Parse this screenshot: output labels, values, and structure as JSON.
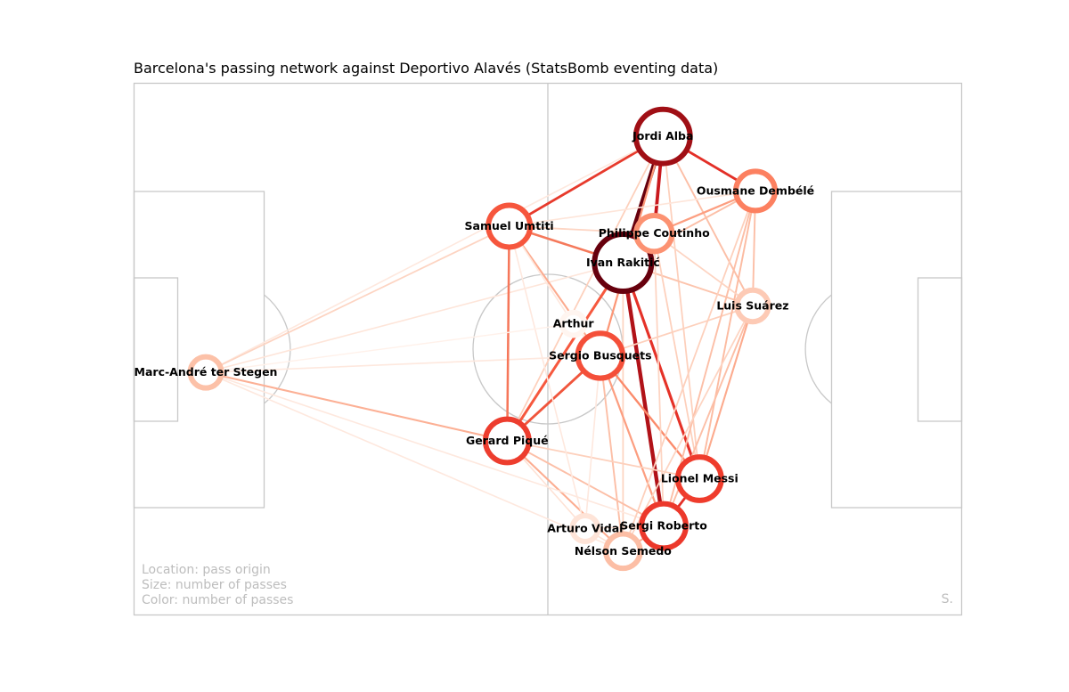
{
  "title": "Barcelona's passing network against Deportivo Alavés (StatsBomb eventing data)",
  "legend": {
    "location": "Location: pass origin",
    "size": "Size: number of passes",
    "color": "Color: number of passes"
  },
  "credit": "S.",
  "chart_data": {
    "type": "network",
    "pitch": {
      "length": 120,
      "width": 80,
      "line_color": "#c8c8c8"
    },
    "colormap": "Reds",
    "nodes": [
      {
        "id": "stegen",
        "name": "Marc-André ter Stegen",
        "x": 10.4,
        "y": 43.5,
        "passes": 14,
        "color": "#fcc1a8"
      },
      {
        "id": "umtiti",
        "name": "Samuel Umtiti",
        "x": 54.4,
        "y": 21.5,
        "passes": 46,
        "color": "#f6563d"
      },
      {
        "id": "arthur",
        "name": "Arthur",
        "x": 63.7,
        "y": 36.2,
        "passes": 2,
        "color": "#fff5f0"
      },
      {
        "id": "busquets",
        "name": "Sergio Busquets",
        "x": 67.6,
        "y": 41.0,
        "passes": 58,
        "color": "#f44f39"
      },
      {
        "id": "pique",
        "name": "Gerard Piqué",
        "x": 54.1,
        "y": 53.8,
        "passes": 52,
        "color": "#ed3d2e"
      },
      {
        "id": "alba",
        "name": "Jordi Alba",
        "x": 76.7,
        "y": 8.0,
        "passes": 105,
        "color": "#a00f15"
      },
      {
        "id": "rakitic",
        "name": "Ivan Rakitić",
        "x": 70.9,
        "y": 27.0,
        "passes": 122,
        "color": "#67000d"
      },
      {
        "id": "coutinho",
        "name": "Philippe Coutinho",
        "x": 75.4,
        "y": 22.6,
        "passes": 26,
        "color": "#fc9272"
      },
      {
        "id": "dembele",
        "name": "Ousmane Dembélé",
        "x": 90.1,
        "y": 16.2,
        "passes": 36,
        "color": "#fc8060"
      },
      {
        "id": "suarez",
        "name": "Luis Suárez",
        "x": 89.7,
        "y": 33.5,
        "passes": 15,
        "color": "#fdcab5"
      },
      {
        "id": "messi",
        "name": "Lionel Messi",
        "x": 82.0,
        "y": 59.5,
        "passes": 52,
        "color": "#ef3c2c"
      },
      {
        "id": "roberto",
        "name": "Sergi Roberto",
        "x": 76.8,
        "y": 66.6,
        "passes": 56,
        "color": "#ec382b"
      },
      {
        "id": "vidal",
        "name": "Arturo Vidal",
        "x": 65.4,
        "y": 67.0,
        "passes": 5,
        "color": "#fee4d8"
      },
      {
        "id": "semedo",
        "name": "Nélson Semedo",
        "x": 70.9,
        "y": 70.4,
        "passes": 22,
        "color": "#fcbea5"
      }
    ],
    "edges": [
      {
        "source": "alba",
        "target": "rakitic",
        "passes": 24,
        "color": "#67000d"
      },
      {
        "source": "alba",
        "target": "coutinho",
        "passes": 16,
        "color": "#c9181d"
      },
      {
        "source": "alba",
        "target": "dembele",
        "passes": 10,
        "color": "#e32f27"
      },
      {
        "source": "alba",
        "target": "umtiti",
        "passes": 10,
        "color": "#e73a2c"
      },
      {
        "source": "alba",
        "target": "busquets",
        "passes": 6,
        "color": "#fc9777"
      },
      {
        "source": "alba",
        "target": "suarez",
        "passes": 4,
        "color": "#fcbfa7"
      },
      {
        "source": "alba",
        "target": "pique",
        "passes": 3,
        "color": "#fdd0bc"
      },
      {
        "source": "alba",
        "target": "messi",
        "passes": 3,
        "color": "#fdd0bc"
      },
      {
        "source": "alba",
        "target": "stegen",
        "passes": 2,
        "color": "#fee8de"
      },
      {
        "source": "rakitic",
        "target": "roberto",
        "passes": 20,
        "color": "#b11218"
      },
      {
        "source": "rakitic",
        "target": "messi",
        "passes": 12,
        "color": "#e53228"
      },
      {
        "source": "rakitic",
        "target": "pique",
        "passes": 11,
        "color": "#f6583e"
      },
      {
        "source": "rakitic",
        "target": "umtiti",
        "passes": 8,
        "color": "#f5795b"
      },
      {
        "source": "rakitic",
        "target": "coutinho",
        "passes": 5,
        "color": "#fcb69b"
      },
      {
        "source": "rakitic",
        "target": "dembele",
        "passes": 4,
        "color": "#fcbfa7"
      },
      {
        "source": "rakitic",
        "target": "suarez",
        "passes": 4,
        "color": "#fcc4ad"
      },
      {
        "source": "rakitic",
        "target": "stegen",
        "passes": 2,
        "color": "#fee5d9"
      },
      {
        "source": "rakitic",
        "target": "semedo",
        "passes": 3,
        "color": "#fdd4c2"
      },
      {
        "source": "busquets",
        "target": "pique",
        "passes": 10,
        "color": "#f0553c"
      },
      {
        "source": "busquets",
        "target": "messi",
        "passes": 7,
        "color": "#fb8a6a"
      },
      {
        "source": "busquets",
        "target": "roberto",
        "passes": 6,
        "color": "#fc9e80"
      },
      {
        "source": "busquets",
        "target": "umtiti",
        "passes": 5,
        "color": "#fcab8f"
      },
      {
        "source": "busquets",
        "target": "semedo",
        "passes": 4,
        "color": "#fcbfa7"
      },
      {
        "source": "busquets",
        "target": "suarez",
        "passes": 3,
        "color": "#fdd0bc"
      },
      {
        "source": "busquets",
        "target": "stegen",
        "passes": 2,
        "color": "#fee8de"
      },
      {
        "source": "pique",
        "target": "umtiti",
        "passes": 8,
        "color": "#f6775a"
      },
      {
        "source": "pique",
        "target": "stegen",
        "passes": 5,
        "color": "#fcb095"
      },
      {
        "source": "pique",
        "target": "semedo",
        "passes": 5,
        "color": "#fcad91"
      },
      {
        "source": "pique",
        "target": "roberto",
        "passes": 4,
        "color": "#fcbfa7"
      },
      {
        "source": "pique",
        "target": "messi",
        "passes": 3,
        "color": "#fdd0bc"
      },
      {
        "source": "pique",
        "target": "vidal",
        "passes": 2,
        "color": "#fee2d5"
      },
      {
        "source": "umtiti",
        "target": "stegen",
        "passes": 3,
        "color": "#fdd4c2"
      },
      {
        "source": "umtiti",
        "target": "coutinho",
        "passes": 3,
        "color": "#fdd4c2"
      },
      {
        "source": "umtiti",
        "target": "dembele",
        "passes": 2,
        "color": "#fee5d9"
      },
      {
        "source": "messi",
        "target": "roberto",
        "passes": 10,
        "color": "#e32f27"
      },
      {
        "source": "messi",
        "target": "suarez",
        "passes": 5,
        "color": "#fcaa8d"
      },
      {
        "source": "messi",
        "target": "dembele",
        "passes": 4,
        "color": "#fcbba1"
      },
      {
        "source": "messi",
        "target": "coutinho",
        "passes": 3,
        "color": "#fdd0bc"
      },
      {
        "source": "roberto",
        "target": "semedo",
        "passes": 5,
        "color": "#fcb095"
      },
      {
        "source": "roberto",
        "target": "suarez",
        "passes": 4,
        "color": "#fcbfa7"
      },
      {
        "source": "roberto",
        "target": "dembele",
        "passes": 4,
        "color": "#fcbfa7"
      },
      {
        "source": "roberto",
        "target": "stegen",
        "passes": 2,
        "color": "#fee8de"
      },
      {
        "source": "dembele",
        "target": "coutinho",
        "passes": 6,
        "color": "#fc9e80"
      },
      {
        "source": "dembele",
        "target": "suarez",
        "passes": 4,
        "color": "#fcbfa7"
      },
      {
        "source": "dembele",
        "target": "semedo",
        "passes": 3,
        "color": "#fdd0bc"
      },
      {
        "source": "coutinho",
        "target": "suarez",
        "passes": 3,
        "color": "#fdd4c2"
      },
      {
        "source": "coutinho",
        "target": "roberto",
        "passes": 3,
        "color": "#fdd4c2"
      },
      {
        "source": "semedo",
        "target": "suarez",
        "passes": 3,
        "color": "#fdd4c2"
      },
      {
        "source": "semedo",
        "target": "stegen",
        "passes": 2,
        "color": "#fee8de"
      },
      {
        "source": "semedo",
        "target": "vidal",
        "passes": 2,
        "color": "#fee2d5"
      },
      {
        "source": "vidal",
        "target": "roberto",
        "passes": 2,
        "color": "#fee2d5"
      },
      {
        "source": "vidal",
        "target": "busquets",
        "passes": 2,
        "color": "#fee8de"
      },
      {
        "source": "vidal",
        "target": "umtiti",
        "passes": 2,
        "color": "#fee8de"
      },
      {
        "source": "arthur",
        "target": "busquets",
        "passes": 2,
        "color": "#fee8de"
      },
      {
        "source": "arthur",
        "target": "umtiti",
        "passes": 2,
        "color": "#fee8de"
      },
      {
        "source": "arthur",
        "target": "stegen",
        "passes": 1,
        "color": "#fff1ea"
      }
    ]
  }
}
